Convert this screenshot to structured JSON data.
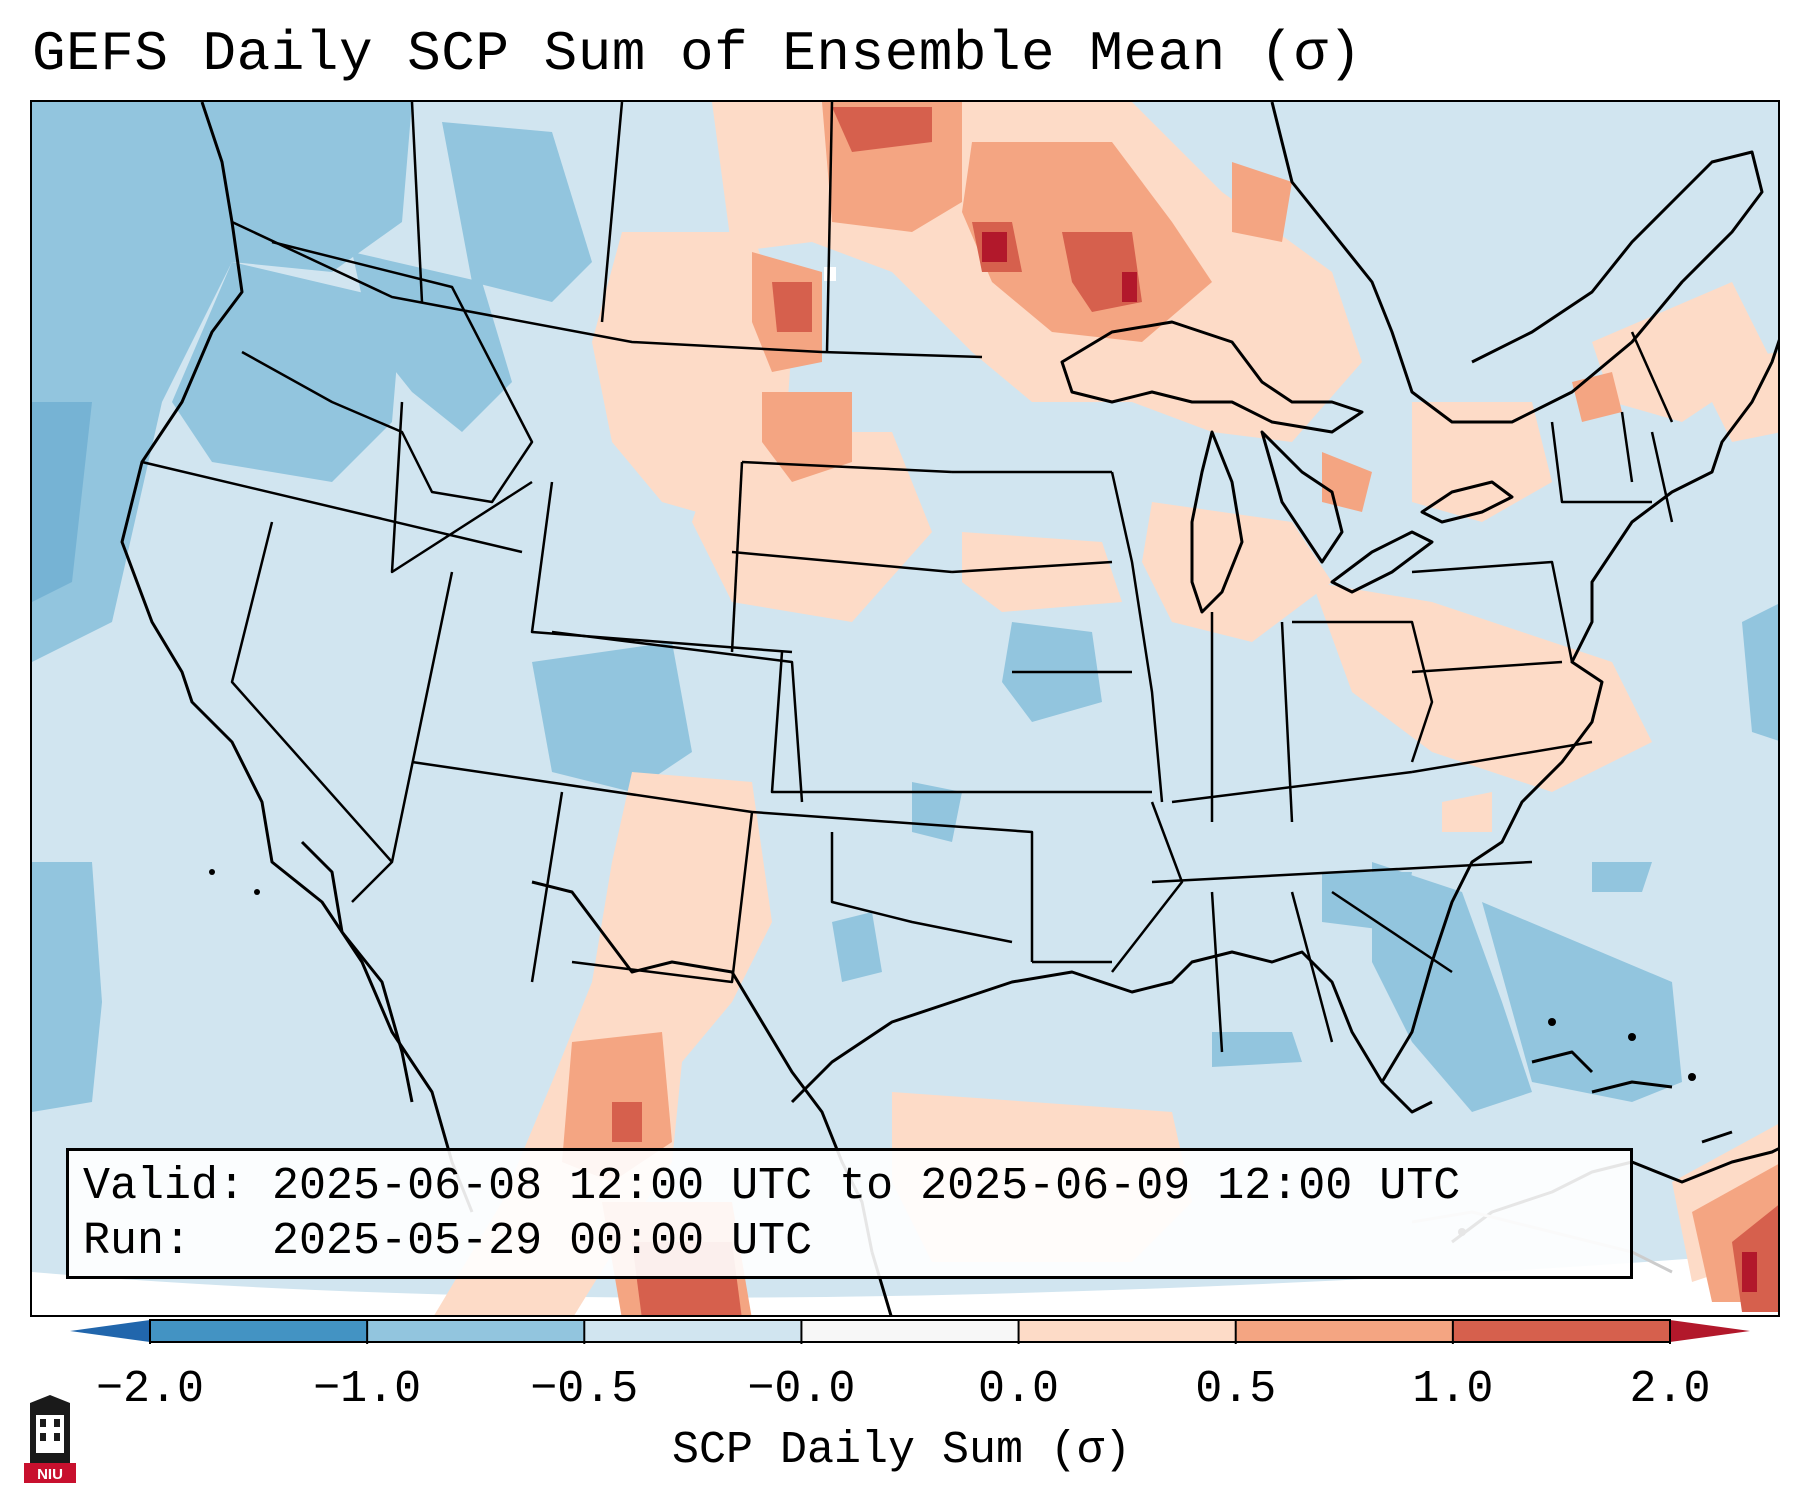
{
  "title": "GEFS Daily SCP Sum of Ensemble Mean (σ)",
  "info": {
    "valid_label": "Valid:",
    "valid_value": "2025-06-08 12:00 UTC to 2025-06-09 12:00 UTC",
    "run_label": "Run:",
    "run_value": "2025-05-29 00:00 UTC"
  },
  "colorbar": {
    "label": "SCP Daily Sum (σ)",
    "ticks": [
      "−2.0",
      "−1.0",
      "−0.5",
      "−0.0",
      "0.0",
      "0.5",
      "1.0",
      "2.0"
    ],
    "bins": [
      {
        "from": -2.0,
        "to": -1.0,
        "color": "#4393c3"
      },
      {
        "from": -1.0,
        "to": -0.5,
        "color": "#92c5de"
      },
      {
        "from": -0.5,
        "to": -0.0,
        "color": "#d1e5f0"
      },
      {
        "from": -0.0,
        "to": 0.0,
        "color": "#f7f7f7"
      },
      {
        "from": 0.0,
        "to": 0.5,
        "color": "#fddbc7"
      },
      {
        "from": 0.5,
        "to": 1.0,
        "color": "#f4a582"
      },
      {
        "from": 1.0,
        "to": 2.0,
        "color": "#d6604d"
      }
    ],
    "under_color": "#2166ac",
    "over_color": "#b2182b"
  },
  "map": {
    "region": "CONUS",
    "background_color": "#d1e5f0",
    "border_color": "#000000"
  },
  "logo": {
    "text": "NIU"
  }
}
